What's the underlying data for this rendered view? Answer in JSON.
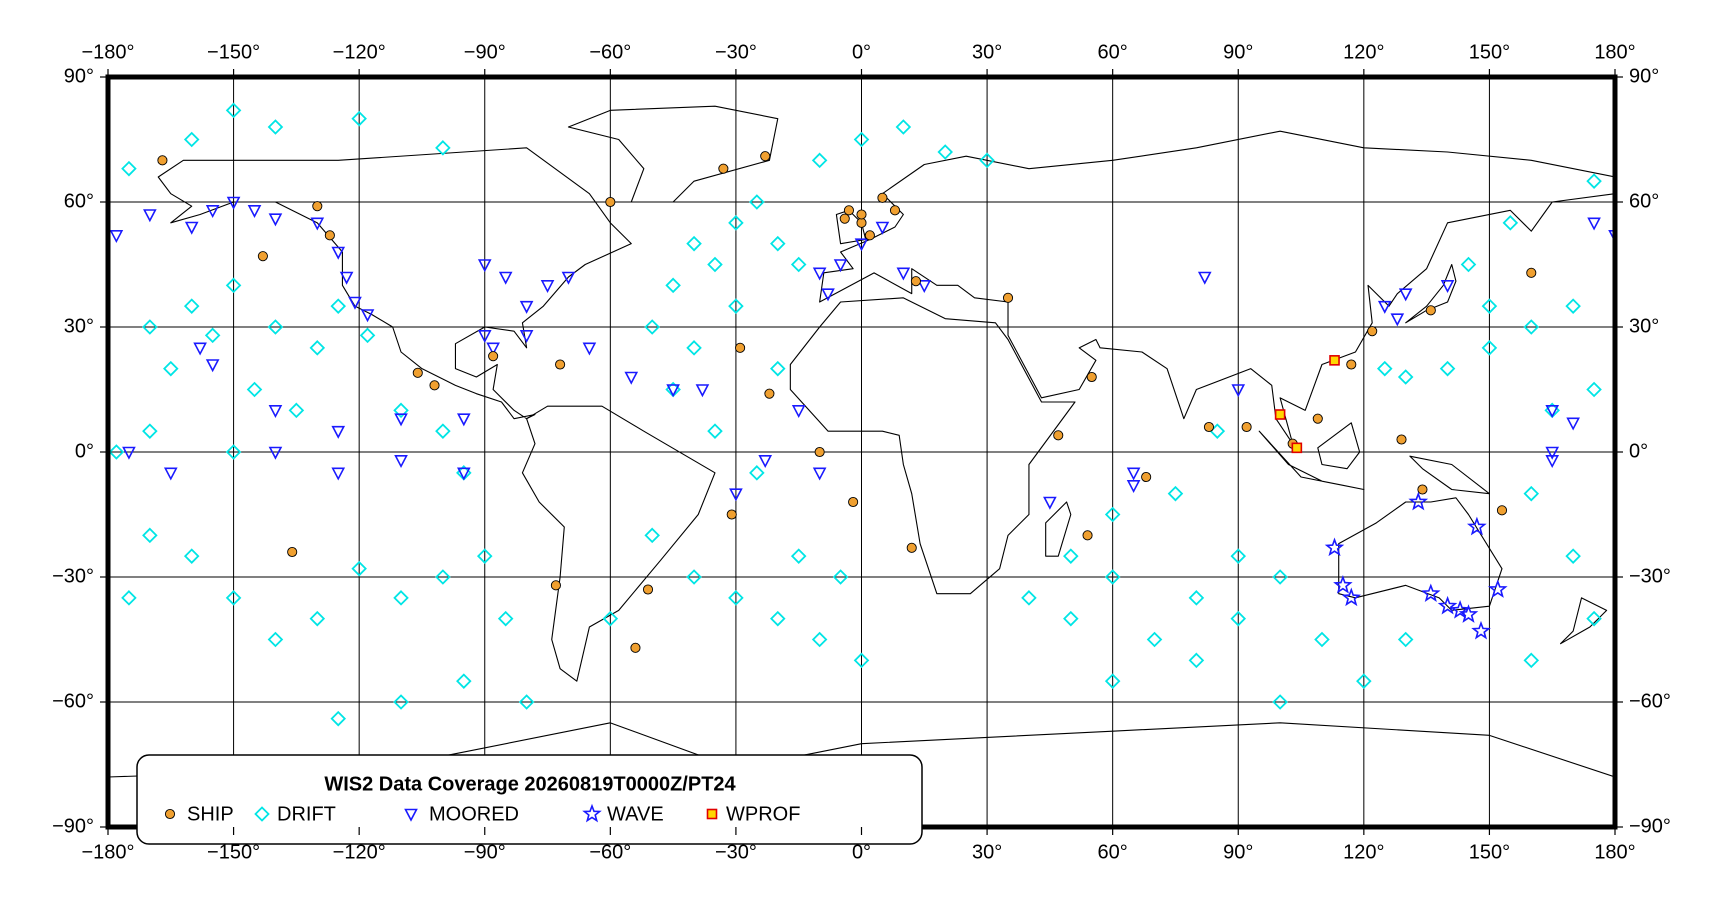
{
  "map": {
    "title": "WIS2 Data Coverage 20260819T0000Z/PT24",
    "xlim": [
      -180,
      180
    ],
    "ylim": [
      -90,
      90
    ],
    "xticks": [
      {
        "value": -180,
        "label": "−180°"
      },
      {
        "value": -150,
        "label": "−150°"
      },
      {
        "value": -120,
        "label": "−120°"
      },
      {
        "value": -90,
        "label": "−90°"
      },
      {
        "value": -60,
        "label": "−60°"
      },
      {
        "value": -30,
        "label": "−30°"
      },
      {
        "value": 0,
        "label": "0°"
      },
      {
        "value": 30,
        "label": "30°"
      },
      {
        "value": 60,
        "label": "60°"
      },
      {
        "value": 90,
        "label": "90°"
      },
      {
        "value": 120,
        "label": "120°"
      },
      {
        "value": 150,
        "label": "150°"
      },
      {
        "value": 180,
        "label": "180°"
      }
    ],
    "yticks": [
      {
        "value": 90,
        "label": "90°"
      },
      {
        "value": 60,
        "label": "60°"
      },
      {
        "value": 30,
        "label": "30°"
      },
      {
        "value": 0,
        "label": "0°"
      },
      {
        "value": -30,
        "label": "−30°"
      },
      {
        "value": -60,
        "label": "−60°"
      },
      {
        "value": -90,
        "label": "−90°"
      }
    ],
    "grid": true,
    "series": [
      {
        "name": "SHIP",
        "marker": "circle",
        "color": "#f0a030",
        "points": [
          [
            -167,
            70
          ],
          [
            -130,
            59
          ],
          [
            -127,
            52
          ],
          [
            -143,
            47
          ],
          [
            -136,
            -24
          ],
          [
            -106,
            19
          ],
          [
            -102,
            16
          ],
          [
            -88,
            23
          ],
          [
            -72,
            21
          ],
          [
            -60,
            60
          ],
          [
            -33,
            68
          ],
          [
            -23,
            71
          ],
          [
            -29,
            25
          ],
          [
            -22,
            14
          ],
          [
            -31,
            -15
          ],
          [
            -10,
            0
          ],
          [
            -2,
            -12
          ],
          [
            12,
            -23
          ],
          [
            -51,
            -33
          ],
          [
            -54,
            -47
          ],
          [
            -73,
            -32
          ],
          [
            0,
            55
          ],
          [
            2,
            52
          ],
          [
            -3,
            58
          ],
          [
            5,
            61
          ],
          [
            8,
            58
          ],
          [
            13,
            41
          ],
          [
            35,
            37
          ],
          [
            55,
            18
          ],
          [
            47,
            4
          ],
          [
            68,
            -6
          ],
          [
            54,
            -20
          ],
          [
            83,
            6
          ],
          [
            92,
            6
          ],
          [
            103,
            2
          ],
          [
            109,
            8
          ],
          [
            117,
            21
          ],
          [
            122,
            29
          ],
          [
            129,
            3
          ],
          [
            134,
            -9
          ],
          [
            153,
            -14
          ],
          [
            160,
            43
          ],
          [
            136,
            34
          ],
          [
            -4,
            56
          ],
          [
            0,
            57
          ]
        ]
      },
      {
        "name": "DRIFT",
        "marker": "diamond",
        "color": "#00e5e5",
        "points": [
          [
            -175,
            68
          ],
          [
            -160,
            75
          ],
          [
            -150,
            82
          ],
          [
            -140,
            78
          ],
          [
            -120,
            80
          ],
          [
            -100,
            73
          ],
          [
            -170,
            30
          ],
          [
            -165,
            20
          ],
          [
            -160,
            35
          ],
          [
            -155,
            28
          ],
          [
            -150,
            40
          ],
          [
            -145,
            15
          ],
          [
            -140,
            30
          ],
          [
            -135,
            10
          ],
          [
            -130,
            25
          ],
          [
            -125,
            35
          ],
          [
            -118,
            28
          ],
          [
            -110,
            10
          ],
          [
            -100,
            5
          ],
          [
            -95,
            -5
          ],
          [
            -170,
            -20
          ],
          [
            -160,
            -25
          ],
          [
            -150,
            -35
          ],
          [
            -140,
            -45
          ],
          [
            -130,
            -40
          ],
          [
            -120,
            -28
          ],
          [
            -110,
            -35
          ],
          [
            -100,
            -30
          ],
          [
            -90,
            -25
          ],
          [
            -85,
            -40
          ],
          [
            -80,
            -60
          ],
          [
            -95,
            -55
          ],
          [
            -110,
            -60
          ],
          [
            -125,
            -64
          ],
          [
            -60,
            -40
          ],
          [
            -50,
            -20
          ],
          [
            -40,
            -30
          ],
          [
            -30,
            -35
          ],
          [
            -20,
            -40
          ],
          [
            -10,
            -45
          ],
          [
            0,
            -50
          ],
          [
            -5,
            -30
          ],
          [
            -15,
            -25
          ],
          [
            -45,
            40
          ],
          [
            -40,
            50
          ],
          [
            -35,
            45
          ],
          [
            -30,
            55
          ],
          [
            -25,
            60
          ],
          [
            -20,
            50
          ],
          [
            -15,
            45
          ],
          [
            -50,
            30
          ],
          [
            -40,
            25
          ],
          [
            -30,
            35
          ],
          [
            -20,
            20
          ],
          [
            -45,
            15
          ],
          [
            -35,
            5
          ],
          [
            -25,
            -5
          ],
          [
            -10,
            70
          ],
          [
            0,
            75
          ],
          [
            10,
            78
          ],
          [
            20,
            72
          ],
          [
            30,
            70
          ],
          [
            40,
            -35
          ],
          [
            50,
            -40
          ],
          [
            60,
            -30
          ],
          [
            70,
            -45
          ],
          [
            80,
            -35
          ],
          [
            90,
            -40
          ],
          [
            100,
            -30
          ],
          [
            110,
            -45
          ],
          [
            60,
            -55
          ],
          [
            80,
            -50
          ],
          [
            120,
            -55
          ],
          [
            130,
            -45
          ],
          [
            100,
            -60
          ],
          [
            140,
            20
          ],
          [
            150,
            25
          ],
          [
            160,
            30
          ],
          [
            170,
            35
          ],
          [
            165,
            10
          ],
          [
            175,
            15
          ],
          [
            160,
            -10
          ],
          [
            170,
            -25
          ],
          [
            150,
            35
          ],
          [
            145,
            45
          ],
          [
            155,
            55
          ],
          [
            175,
            65
          ],
          [
            130,
            18
          ],
          [
            125,
            20
          ],
          [
            85,
            5
          ],
          [
            75,
            -10
          ],
          [
            60,
            -15
          ],
          [
            50,
            -25
          ],
          [
            90,
            -25
          ],
          [
            160,
            -50
          ],
          [
            175,
            -40
          ],
          [
            -175,
            -35
          ],
          [
            -178,
            0
          ],
          [
            -170,
            5
          ],
          [
            -150,
            0
          ]
        ]
      },
      {
        "name": "MOORED",
        "marker": "triangle",
        "color": "#1a1aff",
        "points": [
          [
            -178,
            52
          ],
          [
            -175,
            0
          ],
          [
            -170,
            57
          ],
          [
            -165,
            -5
          ],
          [
            -160,
            54
          ],
          [
            -155,
            58
          ],
          [
            -150,
            60
          ],
          [
            -145,
            58
          ],
          [
            -140,
            56
          ],
          [
            -130,
            55
          ],
          [
            -125,
            48
          ],
          [
            -123,
            42
          ],
          [
            -121,
            36
          ],
          [
            -118,
            33
          ],
          [
            -155,
            21
          ],
          [
            -158,
            25
          ],
          [
            -140,
            10
          ],
          [
            -140,
            0
          ],
          [
            -125,
            5
          ],
          [
            -125,
            -5
          ],
          [
            -110,
            8
          ],
          [
            -110,
            -2
          ],
          [
            -95,
            8
          ],
          [
            -95,
            -5
          ],
          [
            -90,
            45
          ],
          [
            -85,
            42
          ],
          [
            -80,
            35
          ],
          [
            -75,
            40
          ],
          [
            -70,
            42
          ],
          [
            -80,
            28
          ],
          [
            -90,
            28
          ],
          [
            -88,
            25
          ],
          [
            -65,
            25
          ],
          [
            -55,
            18
          ],
          [
            -38,
            15
          ],
          [
            -30,
            -10
          ],
          [
            -23,
            -2
          ],
          [
            -10,
            -5
          ],
          [
            -5,
            45
          ],
          [
            0,
            50
          ],
          [
            5,
            54
          ],
          [
            10,
            43
          ],
          [
            15,
            40
          ],
          [
            -10,
            43
          ],
          [
            -8,
            38
          ],
          [
            82,
            42
          ],
          [
            90,
            15
          ],
          [
            125,
            35
          ],
          [
            130,
            38
          ],
          [
            128,
            32
          ],
          [
            140,
            40
          ],
          [
            165,
            10
          ],
          [
            165,
            0
          ],
          [
            170,
            7
          ],
          [
            175,
            55
          ],
          [
            180,
            52
          ],
          [
            165,
            -2
          ],
          [
            45,
            -12
          ],
          [
            65,
            -5
          ],
          [
            65,
            -8
          ],
          [
            -15,
            10
          ],
          [
            -45,
            15
          ]
        ]
      },
      {
        "name": "WAVE",
        "marker": "star",
        "color": "#1a1aff",
        "points": [
          [
            113,
            -23
          ],
          [
            115,
            -32
          ],
          [
            117,
            -35
          ],
          [
            133,
            -12
          ],
          [
            147,
            -18
          ],
          [
            136,
            -34
          ],
          [
            140,
            -37
          ],
          [
            143,
            -38
          ],
          [
            145,
            -39
          ],
          [
            148,
            -43
          ],
          [
            152,
            -33
          ]
        ]
      },
      {
        "name": "WPROF",
        "marker": "square",
        "color": "#ffd700",
        "stroke": "#e00000",
        "points": [
          [
            113,
            22
          ],
          [
            100,
            9
          ],
          [
            104,
            1
          ]
        ]
      }
    ]
  }
}
